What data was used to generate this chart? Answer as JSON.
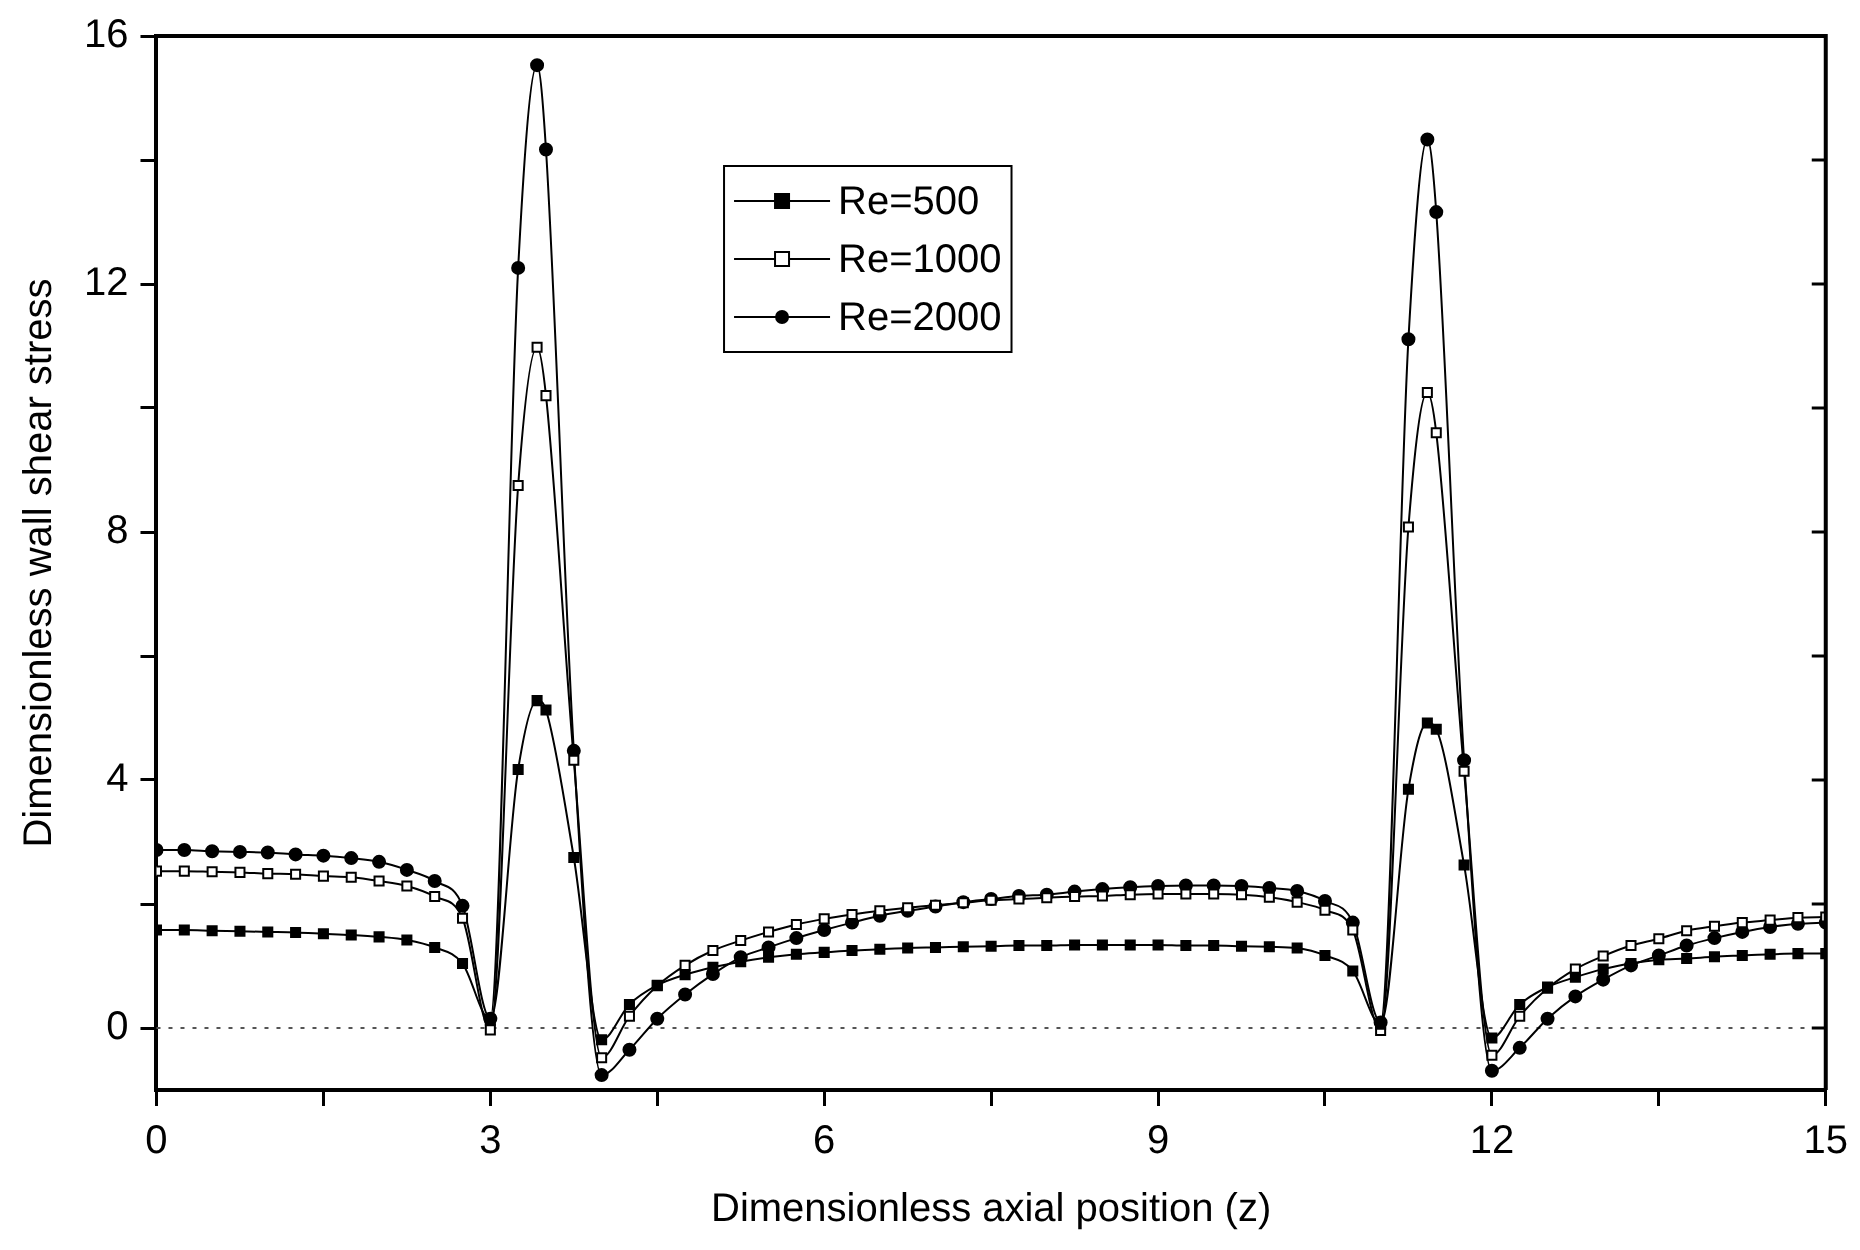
{
  "chart_data": {
    "type": "line",
    "xlabel": "Dimensionless axial position (z)",
    "ylabel": "Dimensionless wall shear stress",
    "x": [
      0,
      0.25,
      0.5,
      0.75,
      1,
      1.25,
      1.5,
      1.75,
      2,
      2.25,
      2.5,
      2.75,
      3,
      3.25,
      3.42,
      3.5,
      3.75,
      4,
      4.25,
      4.5,
      4.75,
      5,
      5.25,
      5.5,
      5.75,
      6,
      6.25,
      6.5,
      6.75,
      7,
      7.25,
      7.5,
      7.75,
      8,
      8.25,
      8.5,
      8.75,
      9,
      9.25,
      9.5,
      9.75,
      10,
      10.25,
      10.5,
      10.75,
      11,
      11.25,
      11.42,
      11.5,
      11.75,
      12,
      12.25,
      12.5,
      12.75,
      13,
      13.25,
      13.5,
      13.75,
      14,
      14.25,
      14.5,
      14.75,
      15
    ],
    "series": [
      {
        "name": "Re=500",
        "color": "#000000",
        "marker": "square",
        "values": [
          1.58,
          1.58,
          1.57,
          1.56,
          1.55,
          1.54,
          1.52,
          1.5,
          1.47,
          1.42,
          1.3,
          1.04,
          0.13,
          4.17,
          5.28,
          5.13,
          2.75,
          -0.19,
          0.38,
          0.69,
          0.86,
          0.98,
          1.07,
          1.14,
          1.19,
          1.22,
          1.25,
          1.27,
          1.29,
          1.3,
          1.31,
          1.32,
          1.33,
          1.33,
          1.34,
          1.34,
          1.34,
          1.34,
          1.33,
          1.33,
          1.32,
          1.31,
          1.29,
          1.17,
          0.92,
          0.06,
          3.85,
          4.92,
          4.82,
          2.63,
          -0.16,
          0.38,
          0.66,
          0.82,
          0.95,
          1.04,
          1.1,
          1.12,
          1.15,
          1.17,
          1.19,
          1.2,
          1.2
        ]
      },
      {
        "name": "Re=1000",
        "color": "#000000",
        "marker": "square-open",
        "values": [
          2.53,
          2.53,
          2.52,
          2.51,
          2.49,
          2.48,
          2.45,
          2.43,
          2.37,
          2.29,
          2.12,
          1.77,
          -0.03,
          8.75,
          10.98,
          10.2,
          4.32,
          -0.48,
          0.19,
          0.68,
          1.01,
          1.25,
          1.41,
          1.55,
          1.67,
          1.76,
          1.83,
          1.89,
          1.94,
          1.98,
          2.02,
          2.06,
          2.08,
          2.1,
          2.12,
          2.13,
          2.15,
          2.16,
          2.16,
          2.16,
          2.15,
          2.11,
          2.03,
          1.9,
          1.58,
          -0.04,
          8.08,
          10.25,
          9.6,
          4.14,
          -0.44,
          0.19,
          0.64,
          0.95,
          1.16,
          1.33,
          1.44,
          1.57,
          1.64,
          1.7,
          1.74,
          1.78,
          1.79
        ]
      },
      {
        "name": "Re=2000",
        "color": "#000000",
        "marker": "circle",
        "values": [
          2.87,
          2.87,
          2.85,
          2.84,
          2.83,
          2.8,
          2.78,
          2.74,
          2.68,
          2.55,
          2.37,
          1.97,
          0.15,
          12.26,
          15.53,
          14.17,
          4.47,
          -0.76,
          -0.35,
          0.15,
          0.54,
          0.87,
          1.14,
          1.3,
          1.45,
          1.58,
          1.7,
          1.81,
          1.89,
          1.96,
          2.03,
          2.08,
          2.13,
          2.15,
          2.2,
          2.24,
          2.27,
          2.29,
          2.3,
          2.3,
          2.29,
          2.26,
          2.21,
          2.05,
          1.7,
          0.09,
          11.11,
          14.33,
          13.16,
          4.32,
          -0.69,
          -0.32,
          0.15,
          0.51,
          0.78,
          1.01,
          1.17,
          1.33,
          1.45,
          1.55,
          1.63,
          1.68,
          1.7
        ]
      }
    ],
    "xlim": [
      0,
      15
    ],
    "xticks": [
      0,
      {
        "value": 1.5,
        "label": null
      },
      3,
      {
        "value": 4.5,
        "label": null
      },
      6,
      {
        "value": 7.5,
        "label": null
      },
      9,
      {
        "value": 10.5,
        "label": null
      },
      12,
      {
        "value": 13.5,
        "label": null
      },
      15
    ],
    "ylim": [
      -1,
      16
    ],
    "yticks": [
      0,
      {
        "value": 2,
        "label": null
      },
      4,
      {
        "value": 6,
        "label": null
      },
      8,
      {
        "value": 10,
        "label": null
      },
      12,
      {
        "value": 14,
        "label": null
      },
      16
    ],
    "ref_lines": [
      {
        "axis": "y",
        "value": 0,
        "line_style": "dotted",
        "color": "#555555"
      }
    ],
    "grid": false,
    "legend": "top",
    "line_style": "solid"
  }
}
